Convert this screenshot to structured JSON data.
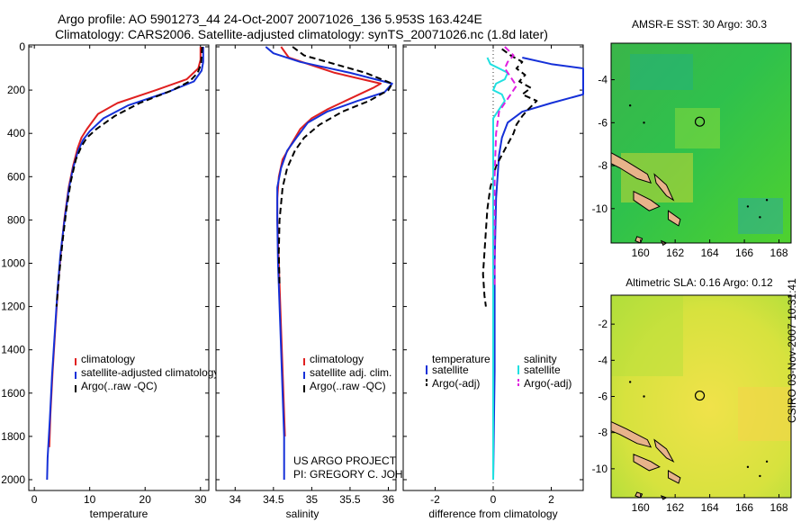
{
  "header": {
    "title_line1": "Argo profile: AO 5901273_44 24-Oct-2007 20071026_136 5.953S 163.424E",
    "title_line2": "Climatology: CARS2006. Satellite-adjusted climatology: synTS_20071026.nc (1.8d later)"
  },
  "stamp": "CSIRO 03-Nov-2007 10:31:41",
  "project_note": [
    "US ARGO PROJECT",
    "PI: GREGORY C. JOHNSON"
  ],
  "colors": {
    "climatology": "#e02020",
    "satellite": "#1530d8",
    "argo": "#000000",
    "sat_salinity": "#20e0e0",
    "argo_salinity": "#e020e0"
  },
  "chart_data": [
    {
      "type": "line",
      "id": "temperature",
      "xlabel": "temperature",
      "ylabel": "",
      "xlim": [
        -1,
        31.5
      ],
      "ylim": [
        2050,
        0
      ],
      "xticks": [
        0,
        10,
        20,
        30
      ],
      "yticks": [
        0,
        200,
        400,
        600,
        800,
        1000,
        1200,
        1400,
        1600,
        1800,
        2000
      ],
      "legend": [
        "climatology",
        "satellite-adjusted climatology",
        "Argo(..raw -QC)"
      ],
      "series": [
        {
          "name": "climatology",
          "color": "#e02020",
          "dash": "",
          "points": [
            [
              30.0,
              0
            ],
            [
              30.0,
              60
            ],
            [
              29.6,
              100
            ],
            [
              27.5,
              150
            ],
            [
              22,
              200
            ],
            [
              15,
              260
            ],
            [
              11.5,
              310
            ],
            [
              9.5,
              380
            ],
            [
              8.5,
              420
            ],
            [
              7.8,
              470
            ],
            [
              7.0,
              550
            ],
            [
              6.2,
              650
            ],
            [
              5.4,
              800
            ],
            [
              4.8,
              950
            ],
            [
              4.3,
              1100
            ],
            [
              3.8,
              1300
            ],
            [
              3.3,
              1500
            ],
            [
              2.9,
              1700
            ],
            [
              2.7,
              1850
            ]
          ]
        },
        {
          "name": "satellite-adjusted climatology",
          "color": "#1530d8",
          "dash": "",
          "points": [
            [
              30.5,
              0
            ],
            [
              30.5,
              70
            ],
            [
              30.2,
              110
            ],
            [
              28.8,
              160
            ],
            [
              24,
              210
            ],
            [
              17,
              270
            ],
            [
              12.5,
              330
            ],
            [
              10,
              390
            ],
            [
              8.8,
              430
            ],
            [
              7.9,
              480
            ],
            [
              7.0,
              560
            ],
            [
              6.2,
              660
            ],
            [
              5.4,
              810
            ],
            [
              4.7,
              960
            ],
            [
              4.2,
              1120
            ],
            [
              3.7,
              1320
            ],
            [
              3.2,
              1520
            ],
            [
              2.8,
              1720
            ],
            [
              2.4,
              1900
            ],
            [
              2.3,
              2000
            ]
          ]
        },
        {
          "name": "Argo(..raw -QC)",
          "color": "#000000",
          "dash": "7,4",
          "points": [
            [
              30.3,
              0
            ],
            [
              30.1,
              80
            ],
            [
              29.5,
              120
            ],
            [
              28,
              160
            ],
            [
              25,
              200
            ],
            [
              19,
              260
            ],
            [
              14.5,
              320
            ],
            [
              11.2,
              380
            ],
            [
              9.5,
              420
            ],
            [
              8.5,
              460
            ],
            [
              7.5,
              520
            ],
            [
              6.6,
              620
            ],
            [
              5.8,
              750
            ],
            [
              5.1,
              900
            ],
            [
              4.5,
              1050
            ],
            [
              4.0,
              1200
            ]
          ]
        }
      ]
    },
    {
      "type": "line",
      "id": "salinity",
      "xlabel": "salinity",
      "ylabel": "",
      "xlim": [
        33.75,
        36.1
      ],
      "ylim": [
        2050,
        0
      ],
      "xticks": [
        34,
        34.5,
        35,
        35.5,
        36
      ],
      "yticks": [
        0,
        200,
        400,
        600,
        800,
        1000,
        1200,
        1400,
        1600,
        1800,
        2000
      ],
      "legend": [
        "climatology",
        "satellite adj. clim.",
        "Argo(..raw -QC)"
      ],
      "series": [
        {
          "name": "climatology",
          "color": "#e02020",
          "dash": "",
          "points": [
            [
              34.6,
              0
            ],
            [
              34.7,
              50
            ],
            [
              35.3,
              120
            ],
            [
              35.9,
              170
            ],
            [
              35.8,
              190
            ],
            [
              35.5,
              240
            ],
            [
              35.2,
              290
            ],
            [
              35.0,
              330
            ],
            [
              34.85,
              380
            ],
            [
              34.75,
              440
            ],
            [
              34.62,
              520
            ],
            [
              34.57,
              600
            ],
            [
              34.55,
              700
            ],
            [
              34.55,
              800
            ],
            [
              34.57,
              1000
            ],
            [
              34.6,
              1300
            ],
            [
              34.63,
              1600
            ],
            [
              34.65,
              1800
            ]
          ]
        },
        {
          "name": "satellite adj. clim.",
          "color": "#1530d8",
          "dash": "",
          "points": [
            [
              34.4,
              0
            ],
            [
              34.5,
              30
            ],
            [
              34.85,
              70
            ],
            [
              35.5,
              120
            ],
            [
              36.05,
              170
            ],
            [
              35.95,
              210
            ],
            [
              35.6,
              250
            ],
            [
              35.2,
              300
            ],
            [
              34.95,
              350
            ],
            [
              34.8,
              420
            ],
            [
              34.68,
              480
            ],
            [
              34.6,
              560
            ],
            [
              34.55,
              650
            ],
            [
              34.55,
              800
            ],
            [
              34.56,
              1000
            ],
            [
              34.59,
              1300
            ],
            [
              34.62,
              1600
            ],
            [
              34.64,
              1800
            ],
            [
              34.64,
              2000
            ]
          ]
        },
        {
          "name": "Argo(..raw -QC)",
          "color": "#000000",
          "dash": "7,4",
          "points": [
            [
              34.75,
              0
            ],
            [
              34.9,
              40
            ],
            [
              35.3,
              80
            ],
            [
              35.7,
              120
            ],
            [
              36.05,
              170
            ],
            [
              36.0,
              200
            ],
            [
              35.75,
              250
            ],
            [
              35.4,
              300
            ],
            [
              35.1,
              360
            ],
            [
              34.9,
              420
            ],
            [
              34.78,
              480
            ],
            [
              34.68,
              560
            ],
            [
              34.62,
              650
            ],
            [
              34.58,
              800
            ],
            [
              34.57,
              950
            ],
            [
              34.58,
              1100
            ]
          ]
        }
      ]
    },
    {
      "type": "line",
      "id": "difference",
      "xlabel": "difference from climatology",
      "ylabel": "",
      "xlim": [
        -3.1,
        3.1
      ],
      "ylim": [
        2050,
        0
      ],
      "xticks": [
        -2,
        0,
        2
      ],
      "yticks": [
        0,
        200,
        400,
        600,
        800,
        1000,
        1200,
        1400,
        1600,
        1800,
        2000
      ],
      "legend_headers": [
        "temperature",
        "salinity"
      ],
      "legend": [
        "satellite",
        "Argo(-adj)",
        "satellite",
        "Argo(-adj)"
      ],
      "series": [
        {
          "name": "temperature satellite",
          "color": "#1530d8",
          "dash": "",
          "points": [
            [
              1.0,
              50
            ],
            [
              2.0,
              80
            ],
            [
              3.1,
              100
            ],
            [
              3.1,
              220
            ],
            [
              2.0,
              260
            ],
            [
              1.0,
              300
            ],
            [
              0.5,
              350
            ],
            [
              0.3,
              420
            ],
            [
              0.2,
              500
            ],
            [
              0.1,
              700
            ],
            [
              0.05,
              1000
            ],
            [
              0.05,
              1500
            ],
            [
              0.0,
              2000
            ]
          ]
        },
        {
          "name": "temperature Argo(-adj)",
          "color": "#000000",
          "dash": "7,4",
          "points": [
            [
              0.3,
              10
            ],
            [
              0.6,
              40
            ],
            [
              1.0,
              70
            ],
            [
              0.8,
              100
            ],
            [
              1.1,
              130
            ],
            [
              0.9,
              160
            ],
            [
              1.3,
              190
            ],
            [
              1.0,
              220
            ],
            [
              1.5,
              250
            ],
            [
              1.2,
              290
            ],
            [
              1.0,
              320
            ],
            [
              0.8,
              360
            ],
            [
              0.7,
              400
            ],
            [
              0.5,
              450
            ],
            [
              0.3,
              500
            ],
            [
              0.1,
              550
            ],
            [
              -0.1,
              650
            ],
            [
              -0.2,
              750
            ],
            [
              -0.25,
              850
            ],
            [
              -0.3,
              950
            ],
            [
              -0.35,
              1050
            ],
            [
              -0.3,
              1150
            ],
            [
              -0.25,
              1200
            ]
          ]
        },
        {
          "name": "salinity satellite",
          "color": "#20e0e0",
          "dash": "",
          "points": [
            [
              -0.2,
              50
            ],
            [
              -0.1,
              80
            ],
            [
              0.2,
              100
            ],
            [
              0.5,
              120
            ],
            [
              0.4,
              150
            ],
            [
              0.1,
              170
            ],
            [
              0.0,
              200
            ],
            [
              0.3,
              220
            ],
            [
              0.4,
              250
            ],
            [
              0.2,
              290
            ],
            [
              0.0,
              330
            ],
            [
              0.0,
              500
            ],
            [
              0.0,
              1000
            ],
            [
              0.0,
              1500
            ],
            [
              0.0,
              2000
            ]
          ]
        },
        {
          "name": "salinity Argo(-adj)",
          "color": "#e020e0",
          "dash": "7,4",
          "points": [
            [
              0.4,
              0
            ],
            [
              0.7,
              40
            ],
            [
              0.5,
              70
            ],
            [
              0.4,
              100
            ],
            [
              0.6,
              140
            ],
            [
              0.8,
              180
            ],
            [
              0.6,
              220
            ],
            [
              0.4,
              260
            ],
            [
              0.2,
              300
            ],
            [
              0.1,
              400
            ],
            [
              0.05,
              600
            ],
            [
              0.05,
              800
            ],
            [
              0.05,
              1000
            ],
            [
              0.05,
              1100
            ]
          ]
        }
      ]
    },
    {
      "type": "heatmap",
      "id": "sst-map",
      "title": "AMSR-E SST: 30 Argo: 30.3",
      "xticks": [
        160,
        162,
        164,
        166,
        168
      ],
      "yticks": [
        -4,
        -6,
        -8,
        -10
      ],
      "xlim": [
        158.3,
        168.7
      ],
      "ylim": [
        -11.6,
        -2.3
      ],
      "argo_position": [
        163.424,
        -5.953
      ]
    },
    {
      "type": "heatmap",
      "id": "sla-map",
      "title": "Altimetric SLA: 0.16 Argo: 0.12",
      "xticks": [
        160,
        162,
        164,
        166,
        168
      ],
      "yticks": [
        -2,
        -4,
        -6,
        -8,
        -10
      ],
      "xlim": [
        158.3,
        168.7
      ],
      "ylim": [
        -11.6,
        -0.4
      ],
      "argo_position": [
        163.424,
        -5.953
      ]
    }
  ]
}
